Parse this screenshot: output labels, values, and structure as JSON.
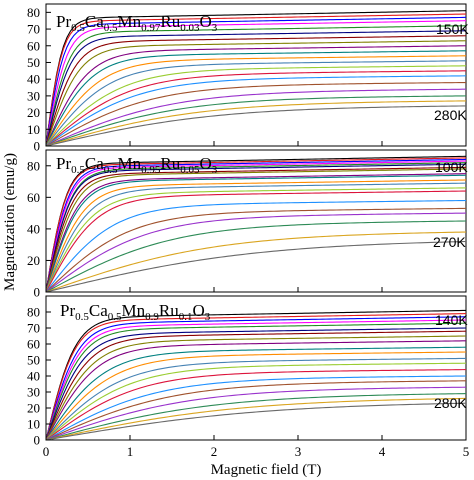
{
  "chart_data": {
    "type": "line",
    "xlabel": "Magnetic field (T)",
    "ylabel": "Magnetization (emu/g)",
    "x_ticks": [
      "0",
      "1",
      "2",
      "3",
      "4",
      "5"
    ],
    "xlim": [
      0,
      5
    ],
    "grid": false,
    "panels": [
      {
        "title": {
          "prefix": "Pr",
          "s1": "0.5",
          "m1": "Ca",
          "s2": "0.5",
          "m2": "Mn",
          "s3": "0.97",
          "m3": "Ru",
          "s4": "0.03",
          "m4": "O",
          "s5": "3"
        },
        "ylim": [
          0,
          85
        ],
        "y_ticks": [
          "0",
          "10",
          "20",
          "30",
          "40",
          "50",
          "60",
          "70",
          "80"
        ],
        "top_temperature": "150K",
        "bottom_temperature": "280K",
        "curve_ends_at_5T": [
          81,
          79,
          77,
          75,
          72,
          69,
          66,
          63,
          60,
          57,
          54,
          51,
          48,
          45,
          42,
          38,
          34,
          30,
          27,
          24
        ],
        "saturation_field_T": [
          0.2,
          0.2,
          0.22,
          0.25,
          0.28,
          0.3,
          0.35,
          0.4,
          0.5,
          0.55,
          0.65,
          0.75,
          0.9,
          1.0,
          1.1,
          1.25,
          1.5,
          1.6,
          1.8,
          2.0
        ]
      },
      {
        "title": {
          "prefix": "Pr",
          "s1": "0.5",
          "m1": "Ca",
          "s2": "0.5",
          "m2": "Mn",
          "s3": "0.95",
          "m3": "Ru",
          "s4": "0.05",
          "m4": "O",
          "s5": "3"
        },
        "ylim": [
          0,
          90
        ],
        "y_ticks": [
          "0",
          "20",
          "40",
          "60",
          "80"
        ],
        "top_temperature": "100K",
        "bottom_temperature": "270K",
        "curve_ends_at_5T": [
          86,
          85,
          84,
          83,
          82,
          81,
          79,
          78,
          75,
          74,
          71,
          69,
          66,
          64,
          58,
          53,
          50,
          45,
          38,
          32
        ],
        "saturation_field_T": [
          0.25,
          0.25,
          0.27,
          0.28,
          0.3,
          0.3,
          0.32,
          0.35,
          0.38,
          0.4,
          0.45,
          0.5,
          0.55,
          0.6,
          0.8,
          1.0,
          1.2,
          1.5,
          2.0,
          2.5
        ]
      },
      {
        "title": {
          "prefix": "Pr",
          "s1": "0.5",
          "m1": "Ca",
          "s2": "0.5",
          "m2": "Mn",
          "s3": "0.9",
          "m3": "Ru",
          "s4": "0.1",
          "m4": "O",
          "s5": "3"
        },
        "ylim": [
          0,
          90
        ],
        "y_ticks": [
          "0",
          "10",
          "20",
          "30",
          "40",
          "50",
          "60",
          "70",
          "80"
        ],
        "top_temperature": "140K",
        "bottom_temperature": "280K",
        "curve_ends_at_5T": [
          81,
          79,
          77,
          75,
          73,
          70,
          68,
          65,
          62,
          58,
          55,
          51,
          48,
          44,
          40,
          37,
          33,
          29,
          26,
          23
        ],
        "saturation_field_T": [
          0.35,
          0.35,
          0.38,
          0.4,
          0.42,
          0.45,
          0.5,
          0.55,
          0.6,
          0.7,
          0.8,
          0.9,
          1.0,
          1.1,
          1.3,
          1.5,
          1.7,
          2.0,
          2.3,
          2.6
        ]
      }
    ],
    "series_colors": [
      "#000000",
      "#e41a1c",
      "#0000ff",
      "#ff00ff",
      "#228b22",
      "#000080",
      "#8b0000",
      "#808000",
      "#800080",
      "#008080",
      "#ff8c00",
      "#4682b4",
      "#9acd32",
      "#dc143c",
      "#1e90ff",
      "#a0522d",
      "#9932cc",
      "#2e8b57",
      "#daa520",
      "#696969"
    ]
  }
}
